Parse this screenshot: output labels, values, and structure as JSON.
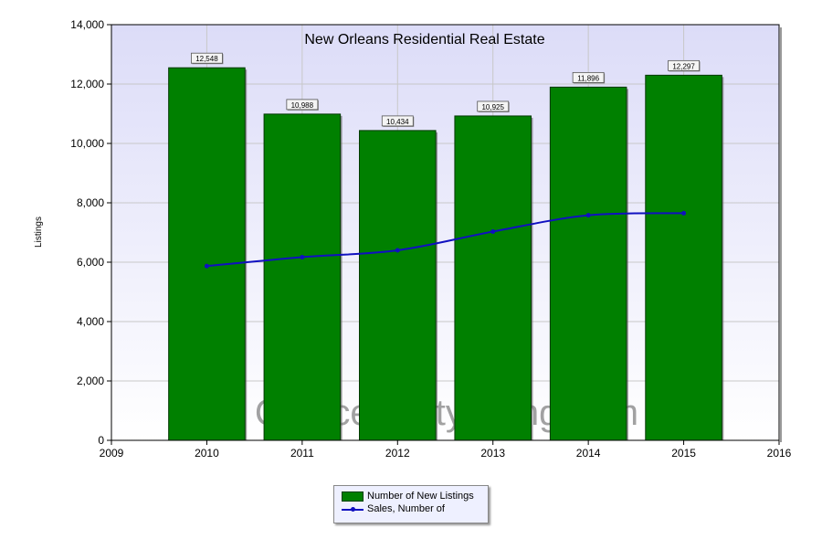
{
  "chart_data": {
    "type": "bar",
    "title": "New Orleans Residential Real Estate",
    "ylabel": "Listings",
    "xlabel": "",
    "x_ticks": [
      "2009",
      "2010",
      "2011",
      "2012",
      "2013",
      "2014",
      "2015",
      "2016"
    ],
    "y_ticks": [
      "0",
      "2,000",
      "4,000",
      "6,000",
      "8,000",
      "10,000",
      "12,000",
      "14,000"
    ],
    "xlim": [
      2009,
      2016
    ],
    "ylim": [
      0,
      14000
    ],
    "grid": true,
    "legend_position": "bottom-center",
    "watermark": "CrescentCityLiving.com",
    "categories": [
      "2010",
      "2011",
      "2012",
      "2013",
      "2014",
      "2015"
    ],
    "series": [
      {
        "name": "Number of New Listings",
        "type": "bar",
        "color": "#008000",
        "x": [
          2010,
          2011,
          2012,
          2013,
          2014,
          2015
        ],
        "values": [
          12548,
          10988,
          10434,
          10925,
          11896,
          12297
        ],
        "data_labels": [
          "12,548",
          "10,988",
          "10,434",
          "10,925",
          "11,896",
          "12,297"
        ]
      },
      {
        "name": "Sales, Number of",
        "type": "line",
        "color": "#1010c0",
        "x": [
          2010,
          2011,
          2012,
          2013,
          2014,
          2015
        ],
        "values": [
          5870,
          6170,
          6400,
          7030,
          7580,
          7650
        ]
      }
    ]
  }
}
